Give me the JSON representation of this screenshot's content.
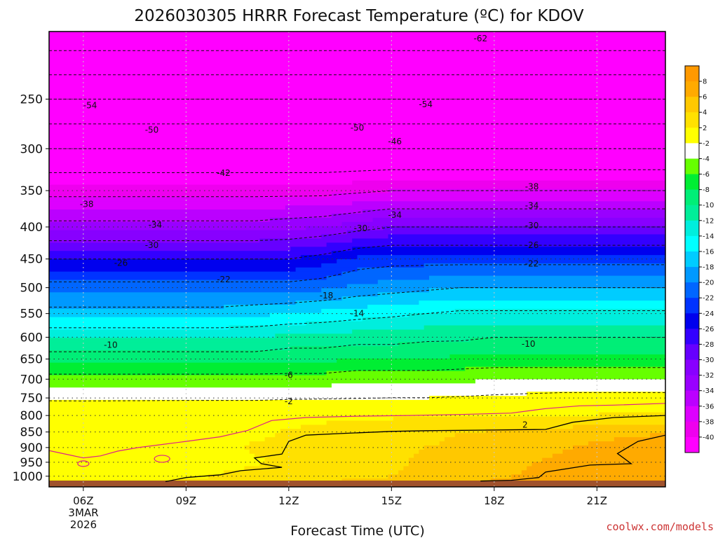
{
  "chart_data": {
    "type": "heatmap",
    "title": "2026030305 HRRR Forecast Temperature (ºC) for KDOV",
    "xlabel": "Forecast Time (UTC)",
    "ylabel": "",
    "x_ticks": [
      {
        "hour": 6,
        "label": "06Z"
      },
      {
        "hour": 9,
        "label": "09Z"
      },
      {
        "hour": 12,
        "label": "12Z"
      },
      {
        "hour": 15,
        "label": "15Z"
      },
      {
        "hour": 18,
        "label": "18Z"
      },
      {
        "hour": 21,
        "label": "21Z"
      }
    ],
    "x_date_label": [
      "3MAR",
      "2026"
    ],
    "xlim": [
      5,
      23
    ],
    "ylim_pressure": [
      1040,
      195
    ],
    "y_ticks": [
      250,
      300,
      350,
      400,
      450,
      500,
      550,
      600,
      650,
      700,
      750,
      800,
      850,
      900,
      950,
      1000
    ],
    "colorbar": {
      "levels": [
        "8",
        "6",
        "4",
        "2",
        "-2",
        "-4",
        "-6",
        "-8",
        "-10",
        "-12",
        "-14",
        "-16",
        "-18",
        "-20",
        "-22",
        "-24",
        "-26",
        "-28",
        "-30",
        "-32",
        "-34",
        "-36",
        "-38",
        "-40"
      ],
      "colors": [
        "#ff9900",
        "#ffaa00",
        "#ffc800",
        "#ffe100",
        "#ffff00",
        "#ffffff",
        "#66ff00",
        "#00ee33",
        "#00ee77",
        "#00ee99",
        "#00eedd",
        "#00ffff",
        "#00ccff",
        "#0099ff",
        "#0066ff",
        "#0033ff",
        "#0000ee",
        "#3300ff",
        "#6600ff",
        "#8800ff",
        "#9900ff",
        "#bb00ff",
        "#dd00ff",
        "#ee00ee",
        "#ff00ff"
      ]
    },
    "hours": [
      5,
      6,
      7,
      8,
      9,
      10,
      11,
      12,
      13,
      14,
      15,
      16,
      17,
      18,
      19,
      20,
      21,
      22,
      23
    ],
    "levels_hpa": [
      200,
      250,
      300,
      350,
      400,
      450,
      500,
      550,
      600,
      650,
      700,
      750,
      800,
      850,
      900,
      950,
      1000,
      1025
    ],
    "temperature_c": [
      [
        -64,
        -64,
        -64,
        -64,
        -64,
        -64,
        -64,
        -64,
        -64,
        -64,
        -64,
        -64,
        -64,
        -64,
        -64,
        -64,
        -64,
        -64,
        -64
      ],
      [
        -54,
        -54,
        -54,
        -54,
        -54,
        -54,
        -54,
        -54,
        -54,
        -54,
        -54,
        -54,
        -54,
        -54,
        -54,
        -54,
        -54,
        -54,
        -54
      ],
      [
        -46,
        -46,
        -46,
        -46,
        -46,
        -46,
        -46,
        -46,
        -46,
        -46,
        -46,
        -46,
        -46,
        -46,
        -46,
        -46,
        -46,
        -46,
        -46
      ],
      [
        -39,
        -39,
        -39,
        -39,
        -39,
        -39,
        -39,
        -39,
        -39,
        -38.5,
        -38,
        -38,
        -38,
        -38,
        -38,
        -38,
        -38,
        -38,
        -38
      ],
      [
        -33,
        -33,
        -33,
        -33,
        -33,
        -33,
        -33,
        -32.5,
        -32,
        -31,
        -30,
        -30,
        -30,
        -30,
        -30,
        -30,
        -30,
        -30,
        -30
      ],
      [
        -26,
        -26,
        -26,
        -26,
        -26,
        -26,
        -26,
        -26,
        -25,
        -23.5,
        -23,
        -23,
        -23,
        -23,
        -23,
        -23,
        -23,
        -23,
        -23
      ],
      [
        -21,
        -21,
        -21,
        -21,
        -21,
        -21,
        -21,
        -21,
        -20.5,
        -19.5,
        -19,
        -18.5,
        -18,
        -18,
        -18,
        -18,
        -18,
        -18,
        -18
      ],
      [
        -17,
        -17,
        -17,
        -17,
        -17,
        -17,
        -16.5,
        -16,
        -15.5,
        -15,
        -14.5,
        -14,
        -13.5,
        -13.5,
        -13.5,
        -13.5,
        -13.5,
        -13.5,
        -13.5
      ],
      [
        -12,
        -12,
        -12,
        -12,
        -12,
        -12,
        -12,
        -11.5,
        -11.5,
        -11,
        -11,
        -10.5,
        -10.5,
        -10,
        -10,
        -10,
        -10,
        -10,
        -10
      ],
      [
        -9,
        -9,
        -9,
        -9,
        -9,
        -9,
        -9,
        -8.5,
        -8.5,
        -8,
        -8,
        -8,
        -7.5,
        -7.5,
        -7.5,
        -7.5,
        -7.5,
        -7.5,
        -7.5
      ],
      [
        -5,
        -5,
        -5,
        -5,
        -5,
        -5,
        -5,
        -5,
        -5,
        -4.5,
        -4.5,
        -4.5,
        -4.5,
        -4,
        -4,
        -4,
        -4,
        -4,
        -4
      ],
      [
        -2.5,
        -2.5,
        -2.5,
        -2.5,
        -2.5,
        -2.5,
        -2.5,
        -2.3,
        -2.2,
        -2.1,
        -2,
        -2,
        -1.8,
        -1.6,
        -1.4,
        -1.2,
        -1.2,
        -1.2,
        -1.2
      ],
      [
        0.6,
        0.4,
        0.6,
        0.8,
        1,
        1,
        1,
        1.2,
        1.4,
        1.5,
        1.7,
        1.8,
        1.9,
        1.9,
        2,
        2.1,
        2.2,
        2.4,
        2.5
      ],
      [
        0.5,
        0.3,
        0.5,
        0.8,
        1,
        1.2,
        1.5,
        2.2,
        2.7,
        3,
        3.3,
        3.6,
        4,
        4.2,
        4.5,
        4.8,
        5,
        5.4,
        5.8
      ],
      [
        0.5,
        0.2,
        0.5,
        0.8,
        1,
        1.3,
        2.3,
        2.6,
        3,
        3.4,
        3.7,
        4,
        4.3,
        4.6,
        5,
        5.8,
        6.5,
        7.2,
        7.8
      ],
      [
        0.6,
        0.4,
        0.6,
        0.8,
        1,
        1.3,
        1.7,
        2.5,
        3.2,
        3.5,
        3.8,
        4.2,
        4.6,
        5,
        5.8,
        6.6,
        7,
        7.6,
        8
      ],
      [
        1,
        0.8,
        1,
        1.2,
        1.5,
        2.2,
        2.8,
        3.2,
        3.5,
        3.8,
        4,
        4.3,
        4.6,
        5.4,
        6.4,
        7,
        7.2,
        7.6,
        7.8
      ],
      [
        1.5,
        1.5,
        1.5,
        2,
        2.5,
        3,
        3.5,
        3.8,
        4,
        4.3,
        4.6,
        5,
        5.6,
        6.4,
        7,
        7.4,
        7.6,
        7.8,
        8
      ]
    ],
    "contour_labels": [
      "-62",
      "-54",
      "-54",
      "-50",
      "-50",
      "-46",
      "-42",
      "-38",
      "-38",
      "-34",
      "-34",
      "-34",
      "-30",
      "-30",
      "-30",
      "-26",
      "-26",
      "-22",
      "-22",
      "-18",
      "-14",
      "-10",
      "-10",
      "-6",
      "-2",
      "2"
    ],
    "credit": "coolwx.com/models",
    "colors": {
      "credit": "#cc3333",
      "ground": "#a0522d",
      "freezing_line": "#dd2288"
    }
  }
}
